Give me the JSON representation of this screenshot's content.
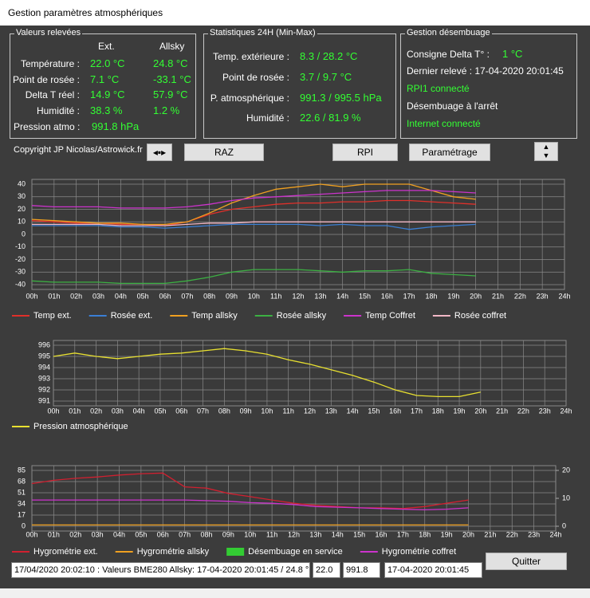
{
  "window": {
    "title": "Gestion paramètres atmosphériques"
  },
  "readings": {
    "title": "Valeurs relevées",
    "headers": [
      "Ext.",
      "Allsky"
    ],
    "rows": [
      {
        "label": "Température :",
        "ext": "22.0 °C",
        "allsky": "24.8 °C"
      },
      {
        "label": "Point de rosée :",
        "ext": "7.1 °C",
        "allsky": "-33.1 °C"
      },
      {
        "label": "Delta T réel :",
        "ext": "14.9 °C",
        "allsky": "57.9 °C"
      },
      {
        "label": "Humidité :",
        "ext": "38.3 %",
        "allsky": "1.2 %"
      }
    ],
    "pressure": {
      "label": "Pression atmo :",
      "value": "991.8 hPa"
    }
  },
  "stats": {
    "title": "Statistiques 24H (Min-Max)",
    "rows": [
      {
        "label": "Temp. extérieure :",
        "value": "8.3 / 28.2 °C"
      },
      {
        "label": "Point de rosée :",
        "value": "3.7 / 9.7 °C"
      },
      {
        "label": "P. atmosphérique :",
        "value": "991.3 / 995.5 hPa"
      },
      {
        "label": "Humidité :",
        "value": "22.6 / 81.9 %"
      }
    ]
  },
  "dew_control": {
    "title": "Gestion désembuage",
    "setpoint": {
      "label": "Consigne Delta T° :",
      "value": "1 °C"
    },
    "last_reading": "Dernier relevé : 17-04-2020 20:01:45",
    "status": [
      "RPI1 connecté",
      "Désembuage à l'arrêt",
      "Internet connecté"
    ]
  },
  "copyright": "Copyright JP Nicolas/Astrowick.fr",
  "buttons": [
    "RAZ",
    "RPI",
    "Paramétrage",
    "Quitter"
  ],
  "status_fields": [
    "17/04/2020 20:02:10 : Valeurs BME280 Allsky: 17-04-2020 20:01:45  / 24.8 °",
    "22.0",
    "991.8",
    "17-04-2020 20:01:45"
  ],
  "chart_data": [
    {
      "type": "line",
      "grid": true,
      "x": [
        0,
        1,
        2,
        3,
        4,
        5,
        6,
        7,
        8,
        9,
        10,
        11,
        12,
        13,
        14,
        15,
        16,
        17,
        18,
        19,
        20
      ],
      "xlim": [
        0,
        24
      ],
      "xticks": [
        {
          "value": 0,
          "label": "00h"
        },
        {
          "value": 1,
          "label": "01h"
        },
        {
          "value": 2,
          "label": "02h"
        },
        {
          "value": 3,
          "label": "03h"
        },
        {
          "value": 4,
          "label": "04h"
        },
        {
          "value": 5,
          "label": "05h"
        },
        {
          "value": 6,
          "label": "06h"
        },
        {
          "value": 7,
          "label": "07h"
        },
        {
          "value": 8,
          "label": "08h"
        },
        {
          "value": 9,
          "label": "09h"
        },
        {
          "value": 10,
          "label": "10h"
        },
        {
          "value": 11,
          "label": "11h"
        },
        {
          "value": 12,
          "label": "12h"
        },
        {
          "value": 13,
          "label": "13h"
        },
        {
          "value": 14,
          "label": "14h"
        },
        {
          "value": 15,
          "label": "15h"
        },
        {
          "value": 16,
          "label": "16h"
        },
        {
          "value": 17,
          "label": "17h"
        },
        {
          "value": 18,
          "label": "18h"
        },
        {
          "value": 19,
          "label": "19h"
        },
        {
          "value": 20,
          "label": "20h"
        },
        {
          "value": 21,
          "label": "21h"
        },
        {
          "value": 22,
          "label": "22h"
        },
        {
          "value": 23,
          "label": "23h"
        },
        {
          "value": 24,
          "label": "24h"
        }
      ],
      "ylim": [
        -40,
        40
      ],
      "yticks": [
        -40,
        -30,
        -20,
        -10,
        0,
        10,
        20,
        30,
        40
      ],
      "series": [
        {
          "name": "Temp ext.",
          "color": "#e0302a",
          "values": [
            11,
            10,
            9,
            9,
            8,
            8,
            7,
            10,
            16,
            20,
            22,
            24,
            25,
            25,
            26,
            26,
            27,
            27,
            26,
            25,
            24
          ]
        },
        {
          "name": "Rosée ext.",
          "color": "#3a7fd5",
          "values": [
            7,
            7,
            7,
            7,
            6,
            6,
            5,
            6,
            7,
            8,
            8,
            8,
            8,
            7,
            8,
            7,
            7,
            4,
            6,
            7,
            8
          ]
        },
        {
          "name": "Temp allsky",
          "color": "#f0a020",
          "values": [
            12,
            11,
            10,
            9,
            9,
            8,
            8,
            10,
            17,
            25,
            31,
            36,
            38,
            40,
            38,
            40,
            40,
            40,
            35,
            30,
            28
          ]
        },
        {
          "name": "Rosée allsky",
          "color": "#3cb043",
          "values": [
            -37,
            -38,
            -38,
            -38,
            -39,
            -39,
            -39,
            -37,
            -34,
            -30,
            -28,
            -28,
            -28,
            -29,
            -30,
            -29,
            -29,
            -28,
            -31,
            -32,
            -33
          ]
        },
        {
          "name": "Temp Coffret",
          "color": "#cc33cc",
          "values": [
            23,
            22,
            22,
            22,
            21,
            21,
            21,
            22,
            24,
            27,
            29,
            30,
            31,
            32,
            33,
            34,
            35,
            35,
            35,
            34,
            33
          ]
        },
        {
          "name": "Rosée coffret",
          "color": "#f2b8c6",
          "values": [
            8,
            8,
            8,
            8,
            7,
            7,
            7,
            8,
            9,
            9,
            10,
            10,
            10,
            10,
            10,
            10,
            10,
            10,
            10,
            10,
            10
          ]
        }
      ]
    },
    {
      "type": "line",
      "grid": true,
      "x": [
        0,
        1,
        2,
        3,
        4,
        5,
        6,
        7,
        8,
        9,
        10,
        11,
        12,
        13,
        14,
        15,
        16,
        17,
        18,
        19,
        20
      ],
      "xlim": [
        0,
        24
      ],
      "xticks": [
        {
          "value": 0,
          "label": "00h"
        },
        {
          "value": 1,
          "label": "01h"
        },
        {
          "value": 2,
          "label": "02h"
        },
        {
          "value": 3,
          "label": "03h"
        },
        {
          "value": 4,
          "label": "04h"
        },
        {
          "value": 5,
          "label": "05h"
        },
        {
          "value": 6,
          "label": "06h"
        },
        {
          "value": 7,
          "label": "07h"
        },
        {
          "value": 8,
          "label": "08h"
        },
        {
          "value": 9,
          "label": "09h"
        },
        {
          "value": 10,
          "label": "10h"
        },
        {
          "value": 11,
          "label": "11h"
        },
        {
          "value": 12,
          "label": "12h"
        },
        {
          "value": 13,
          "label": "13h"
        },
        {
          "value": 14,
          "label": "14h"
        },
        {
          "value": 15,
          "label": "15h"
        },
        {
          "value": 16,
          "label": "16h"
        },
        {
          "value": 17,
          "label": "17h"
        },
        {
          "value": 18,
          "label": "18h"
        },
        {
          "value": 19,
          "label": "19h"
        },
        {
          "value": 20,
          "label": "20h"
        },
        {
          "value": 21,
          "label": "21h"
        },
        {
          "value": 22,
          "label": "22h"
        },
        {
          "value": 23,
          "label": "23h"
        },
        {
          "value": 24,
          "label": "24h"
        }
      ],
      "ylim": [
        991,
        996
      ],
      "yticks": [
        991,
        992,
        993,
        994,
        995,
        996
      ],
      "series": [
        {
          "name": "Pression atmosphérique",
          "color": "#e8e030",
          "values": [
            995.0,
            995.3,
            995.0,
            994.8,
            995.0,
            995.2,
            995.3,
            995.5,
            995.7,
            995.5,
            995.2,
            994.7,
            994.3,
            993.8,
            993.3,
            992.7,
            992.0,
            991.5,
            991.4,
            991.4,
            991.8
          ]
        }
      ]
    },
    {
      "type": "line",
      "grid": true,
      "x": [
        0,
        1,
        2,
        3,
        4,
        5,
        6,
        7,
        8,
        9,
        10,
        11,
        12,
        13,
        14,
        15,
        16,
        17,
        18,
        19,
        20
      ],
      "xlim": [
        0,
        24
      ],
      "xticks": [
        {
          "value": 0,
          "label": "00h"
        },
        {
          "value": 1,
          "label": "01h"
        },
        {
          "value": 2,
          "label": "02h"
        },
        {
          "value": 3,
          "label": "03h"
        },
        {
          "value": 4,
          "label": "04h"
        },
        {
          "value": 5,
          "label": "05h"
        },
        {
          "value": 6,
          "label": "06h"
        },
        {
          "value": 7,
          "label": "07h"
        },
        {
          "value": 8,
          "label": "08h"
        },
        {
          "value": 9,
          "label": "09h"
        },
        {
          "value": 10,
          "label": "10h"
        },
        {
          "value": 11,
          "label": "11h"
        },
        {
          "value": 12,
          "label": "12h"
        },
        {
          "value": 13,
          "label": "13h"
        },
        {
          "value": 14,
          "label": "14h"
        },
        {
          "value": 15,
          "label": "15h"
        },
        {
          "value": 16,
          "label": "16h"
        },
        {
          "value": 17,
          "label": "17h"
        },
        {
          "value": 18,
          "label": "18h"
        },
        {
          "value": 19,
          "label": "19h"
        },
        {
          "value": 20,
          "label": "20h"
        },
        {
          "value": 21,
          "label": "21h"
        },
        {
          "value": 22,
          "label": "22h"
        },
        {
          "value": 23,
          "label": "23h"
        },
        {
          "value": 24,
          "label": "24h"
        }
      ],
      "ylim": [
        0,
        85
      ],
      "yticks": [
        0,
        17,
        34,
        51,
        68,
        85
      ],
      "y2lim": [
        0,
        20
      ],
      "y2ticks": [
        0,
        10,
        20
      ],
      "series": [
        {
          "name": "Hygrométrie ext.",
          "color": "#d02030",
          "values": [
            65,
            70,
            73,
            75,
            78,
            80,
            81,
            60,
            58,
            50,
            45,
            40,
            35,
            32,
            30,
            28,
            28,
            27,
            30,
            35,
            40
          ]
        },
        {
          "name": "Hygrométrie allsky",
          "color": "#f0a020",
          "values": [
            2,
            2,
            2,
            2,
            2,
            2,
            2,
            2,
            2,
            2,
            2,
            2,
            2,
            2,
            2,
            2,
            2,
            2,
            2,
            2,
            2
          ]
        },
        {
          "name": "Désembuage en service",
          "color": "#33cc33",
          "type": "bar",
          "axis": "y2",
          "values": [
            0,
            0,
            0,
            0,
            0,
            0,
            0,
            0,
            0,
            0,
            0,
            0,
            0,
            0,
            0,
            0,
            0,
            0,
            0,
            0,
            0
          ]
        },
        {
          "name": "Hygrométrie coffret",
          "color": "#cc33cc",
          "values": [
            40,
            40,
            40,
            40,
            40,
            40,
            40,
            40,
            39,
            38,
            36,
            35,
            33,
            30,
            29,
            28,
            27,
            26,
            25,
            26,
            28
          ]
        }
      ]
    }
  ]
}
